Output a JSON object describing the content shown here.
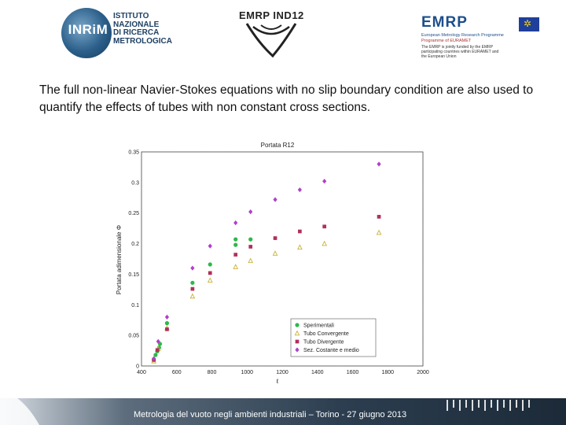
{
  "header": {
    "inrim_letters": "INRiM",
    "inrim_lines": [
      "ISTITUTO",
      "NAZIONALE",
      "DI RICERCA",
      "METROLOGICA"
    ],
    "emrp_ind_title": "EMRP IND12",
    "emrp_word": "EMRP",
    "emrp_sub1": "European Metrology Research Programme",
    "emrp_sub2": "Programme of EURAMET",
    "emrp_note": "The EMRP is jointly funded by the EMRP participating countries within EURAMET and the European Union"
  },
  "body_text": "The full non-linear Navier-Stokes equations with no slip boundary condition are also used to quantify the effects of tubes with non constant cross sections.",
  "footer": {
    "text": "Metrologia del vuoto negli ambienti industriali – Torino - 27 giugno 2013"
  },
  "colors": {
    "sperimentali": "#2db84a",
    "convergente": "#c8b23a",
    "divergente": "#b0305a",
    "costante": "#b040c8"
  },
  "chart_data": {
    "type": "scatter",
    "title": "Portata R12",
    "xlabel": "ℓ",
    "ylabel": "Portata adimensionale Φ",
    "xlim": [
      400,
      2000
    ],
    "ylim": [
      0,
      0.35
    ],
    "xticks": [
      400,
      600,
      800,
      1000,
      1200,
      1400,
      1600,
      1800,
      2000
    ],
    "yticks": [
      0,
      0.05,
      0.1,
      0.15,
      0.2,
      0.25,
      0.3,
      0.35
    ],
    "grid": true,
    "legend_position": "bottom-right",
    "series": [
      {
        "name": "Sperimentali",
        "marker": "circle",
        "color": "#2db84a",
        "points": [
          [
            470,
            0.01
          ],
          [
            480,
            0.018
          ],
          [
            490,
            0.024
          ],
          [
            500,
            0.03
          ],
          [
            505,
            0.036
          ],
          [
            545,
            0.07
          ],
          [
            690,
            0.136
          ],
          [
            790,
            0.166
          ],
          [
            935,
            0.198
          ],
          [
            935,
            0.207
          ],
          [
            1020,
            0.207
          ]
        ]
      },
      {
        "name": "Tubo Convergente",
        "marker": "triangle",
        "color": "#c8b23a",
        "points": [
          [
            470,
            0.008
          ],
          [
            495,
            0.028
          ],
          [
            545,
            0.062
          ],
          [
            690,
            0.114
          ],
          [
            790,
            0.14
          ],
          [
            935,
            0.162
          ],
          [
            1020,
            0.172
          ],
          [
            1160,
            0.184
          ],
          [
            1300,
            0.194
          ],
          [
            1440,
            0.2
          ],
          [
            1750,
            0.218
          ]
        ]
      },
      {
        "name": "Tubo Divergente",
        "marker": "square",
        "color": "#b0305a",
        "points": [
          [
            470,
            0.01
          ],
          [
            490,
            0.026
          ],
          [
            545,
            0.06
          ],
          [
            690,
            0.126
          ],
          [
            790,
            0.152
          ],
          [
            935,
            0.182
          ],
          [
            1020,
            0.195
          ],
          [
            1160,
            0.209
          ],
          [
            1300,
            0.22
          ],
          [
            1440,
            0.228
          ],
          [
            1750,
            0.244
          ]
        ]
      },
      {
        "name": "Sez. Costante e medio",
        "marker": "diamond",
        "color": "#b040c8",
        "points": [
          [
            470,
            0.012
          ],
          [
            495,
            0.04
          ],
          [
            545,
            0.08
          ],
          [
            690,
            0.16
          ],
          [
            790,
            0.196
          ],
          [
            935,
            0.234
          ],
          [
            1020,
            0.252
          ],
          [
            1160,
            0.272
          ],
          [
            1300,
            0.288
          ],
          [
            1440,
            0.302
          ],
          [
            1750,
            0.33
          ]
        ]
      }
    ]
  }
}
